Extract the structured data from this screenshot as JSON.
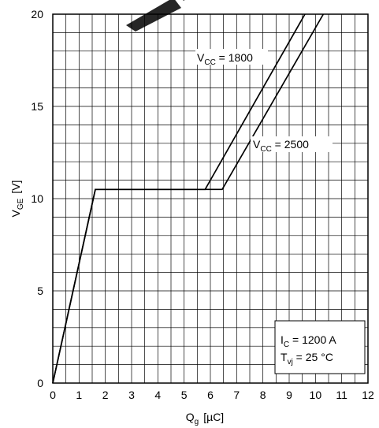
{
  "chart_data": {
    "type": "line",
    "xlabel": "Q",
    "xlabel_sub": "g",
    "xlabel_unit": "[µC]",
    "ylabel": "V",
    "ylabel_sub": "GE",
    "ylabel_unit": "[V]",
    "xlim": [
      0,
      12
    ],
    "ylim": [
      0,
      20
    ],
    "x_ticks": [
      0,
      1,
      2,
      3,
      4,
      5,
      6,
      7,
      8,
      9,
      10,
      11,
      12
    ],
    "y_ticks": [
      0,
      5,
      10,
      15,
      20
    ],
    "grid": true,
    "x_minor_step": 0.5,
    "y_minor_step": 1,
    "series": [
      {
        "name": "VCC = 1800",
        "label_main": "V",
        "label_sub": "CC",
        "label_rest": " = 1800",
        "x": [
          0,
          1.62,
          5.8,
          9.6
        ],
        "y": [
          0,
          10.5,
          10.5,
          20
        ]
      },
      {
        "name": "VCC = 2500",
        "label_main": "V",
        "label_sub": "CC",
        "label_rest": " = 2500",
        "x": [
          0,
          1.62,
          6.45,
          10.3
        ],
        "y": [
          0,
          10.5,
          10.5,
          20
        ]
      }
    ],
    "conditions": [
      {
        "main": "I",
        "sub": "C",
        "rest": " = 1200 A"
      },
      {
        "main": "T",
        "sub": "vj",
        "rest": " = 25 °C"
      }
    ],
    "colors": {
      "line": "#000000",
      "grid": "#000000",
      "background": "#ffffff"
    }
  }
}
